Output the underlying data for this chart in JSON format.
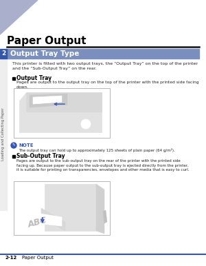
{
  "title": "Paper Output",
  "section_title": "Output Tray Type",
  "section_bg": "#7B8FBF",
  "chapter_num": "2",
  "chapter_label": "Loading and Collecting Paper",
  "page_num": "2-12",
  "page_label": "Paper Output",
  "triangle_color": "#aab0cc",
  "header_line_color": "#111111",
  "body_bg": "#ffffff",
  "footer_line_color": "#3355aa",
  "intro_text": "This printer is fitted with two output trays, the “Output Tray” on the top of the printer\nand the “Sub-Output Tray” on the rear.",
  "output_tray_heading": "Output Tray",
  "output_tray_text": "Pages are output to the output tray on the top of the printer with the printed side facing\ndown.",
  "note_text": "The output tray can hold up to approximately 125 sheets of plain paper (64 g/m²).",
  "sub_output_heading": "Sub-Output Tray",
  "sub_output_text": "Pages are output to the sub-output tray on the rear of the printer with the printed side\nfacing up. Because paper output to the sub-output tray is ejected directly from the printer,\nit is suitable for printing on transparencies, envelopes and other media that is easy to curl.",
  "arrow_color": "#3355bb",
  "note_icon_color": "#3355bb",
  "note_label_color": "#3355bb",
  "body_text_color": "#222222",
  "sidebar_bg": "#3355aa",
  "sidebar_text_color": "#ffffff",
  "sidebar_label_color": "#555555"
}
